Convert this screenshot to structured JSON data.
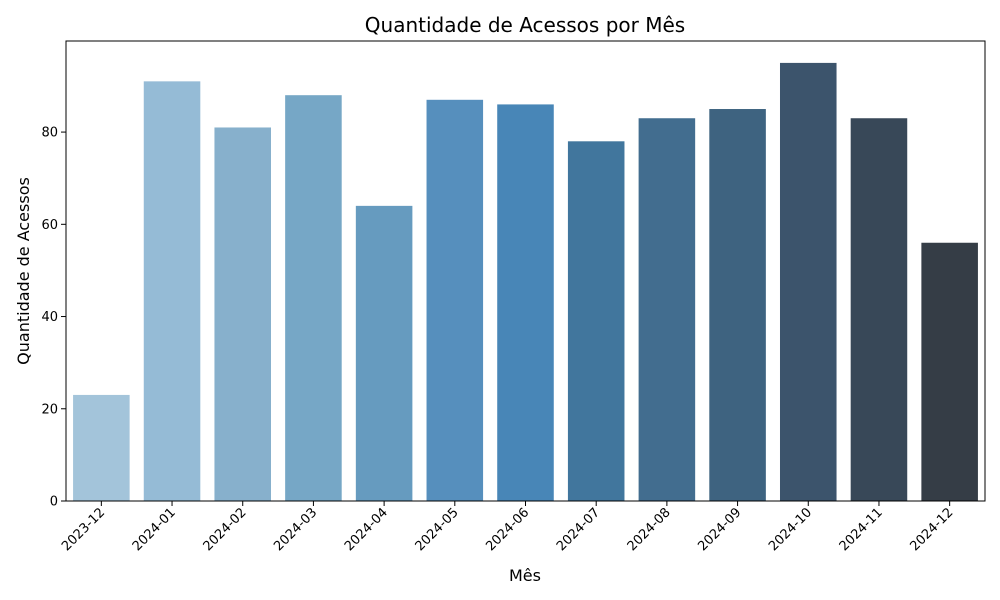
{
  "chart_data": {
    "type": "bar",
    "title": "Quantidade de Acessos por Mês",
    "xlabel": "Mês",
    "ylabel": "Quantidade de Acessos",
    "categories": [
      "2023-12",
      "2024-01",
      "2024-02",
      "2024-03",
      "2024-04",
      "2024-05",
      "2024-06",
      "2024-07",
      "2024-08",
      "2024-09",
      "2024-10",
      "2024-11",
      "2024-12"
    ],
    "values": [
      23,
      91,
      81,
      88,
      64,
      87,
      86,
      78,
      83,
      85,
      95,
      83,
      56
    ],
    "colors": [
      "#a3c4da",
      "#95bbd6",
      "#87b0cc",
      "#76a7c6",
      "#669bbf",
      "#568fbd",
      "#4886b7",
      "#41769d",
      "#426d8f",
      "#3e6380",
      "#3c546c",
      "#384858",
      "#353d46"
    ],
    "ylim": [
      0,
      99.75
    ],
    "yticks": [
      0,
      20,
      40,
      60,
      80
    ],
    "grid": false,
    "legend": false
  }
}
